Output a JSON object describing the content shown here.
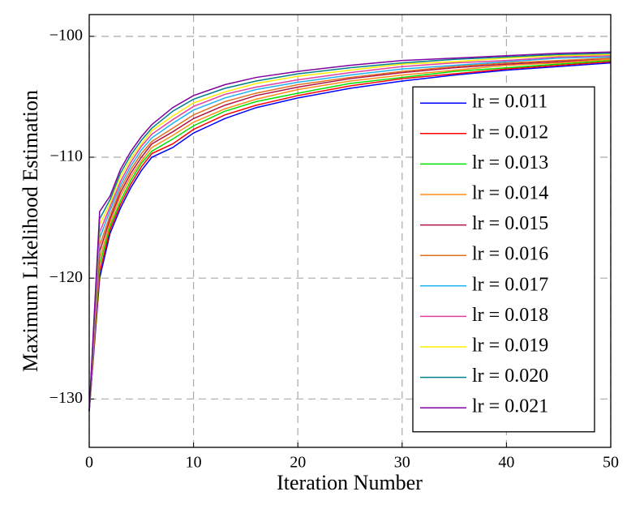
{
  "chart_data": {
    "type": "line",
    "x_label": "Iteration Number",
    "y_label": "Maximum Likelihood Estimation",
    "x": [
      0,
      1,
      2,
      3,
      4,
      5,
      6,
      8,
      10,
      13,
      16,
      20,
      25,
      30,
      35,
      40,
      45,
      50
    ],
    "xlim": [
      0,
      50
    ],
    "xticks": [
      0,
      10,
      20,
      30,
      40,
      50
    ],
    "ylim": [
      -134,
      -98.2
    ],
    "yticks": [
      {
        "value": -130,
        "label": "−130"
      },
      {
        "value": -120,
        "label": "−120"
      },
      {
        "value": -110,
        "label": "−110"
      },
      {
        "value": -100,
        "label": "−100"
      }
    ],
    "grid": true,
    "legend": "right",
    "series": [
      {
        "name": "lr = 0.011",
        "color": "#0000ff",
        "values": [
          -131,
          -120,
          -116.3,
          -114.2,
          -112.5,
          -111.1,
          -110.0,
          -109.2,
          -108.0,
          -106.8,
          -105.9,
          -105.1,
          -104.3,
          -103.7,
          -103.2,
          -102.8,
          -102.5,
          -102.2
        ]
      },
      {
        "name": "lr = 0.012",
        "color": "#ff0000",
        "values": [
          -131,
          -119.5,
          -116.0,
          -113.9,
          -112.2,
          -110.8,
          -109.7,
          -108.9,
          -107.7,
          -106.5,
          -105.7,
          -104.9,
          -104.1,
          -103.5,
          -103.1,
          -102.7,
          -102.4,
          -102.1
        ]
      },
      {
        "name": "lr = 0.013",
        "color": "#00e000",
        "values": [
          -131,
          -118.9,
          -115.7,
          -113.6,
          -111.9,
          -110.5,
          -109.5,
          -108.5,
          -107.4,
          -106.2,
          -105.4,
          -104.7,
          -103.9,
          -103.4,
          -102.9,
          -102.6,
          -102.3,
          -102.0
        ]
      },
      {
        "name": "lr = 0.014",
        "color": "#ff8c1a",
        "values": [
          -131,
          -118.4,
          -115.4,
          -113.2,
          -111.6,
          -110.3,
          -109.2,
          -108.2,
          -107.1,
          -106.0,
          -105.2,
          -104.4,
          -103.7,
          -103.2,
          -102.8,
          -102.4,
          -102.2,
          -101.9
        ]
      },
      {
        "name": "lr = 0.015",
        "color": "#b0124a",
        "values": [
          -131,
          -117.8,
          -115.1,
          -112.9,
          -111.3,
          -110.0,
          -108.9,
          -107.9,
          -106.8,
          -105.7,
          -104.9,
          -104.2,
          -103.5,
          -103.0,
          -102.6,
          -102.3,
          -102.1,
          -101.8
        ]
      },
      {
        "name": "lr = 0.016",
        "color": "#e07020",
        "values": [
          -131,
          -117.3,
          -114.8,
          -112.6,
          -111.0,
          -109.7,
          -108.7,
          -107.6,
          -106.5,
          -105.4,
          -104.7,
          -104.0,
          -103.4,
          -102.9,
          -102.5,
          -102.2,
          -102.0,
          -101.8
        ]
      },
      {
        "name": "lr = 0.017",
        "color": "#20b0f0",
        "values": [
          -131,
          -116.7,
          -114.4,
          -112.3,
          -110.7,
          -109.4,
          -108.4,
          -107.2,
          -106.1,
          -105.1,
          -104.4,
          -103.8,
          -103.2,
          -102.7,
          -102.4,
          -102.1,
          -101.8,
          -101.7
        ]
      },
      {
        "name": "lr = 0.018",
        "color": "#e040a0",
        "values": [
          -131,
          -116.2,
          -114.1,
          -112.0,
          -110.4,
          -109.1,
          -108.1,
          -106.9,
          -105.8,
          -104.8,
          -104.2,
          -103.6,
          -103.0,
          -102.5,
          -102.2,
          -102.0,
          -101.7,
          -101.6
        ]
      },
      {
        "name": "lr = 0.019",
        "color": "#ffee00",
        "values": [
          -131,
          -115.6,
          -113.8,
          -111.6,
          -110.1,
          -108.9,
          -107.8,
          -106.6,
          -105.5,
          -104.6,
          -103.9,
          -103.3,
          -102.8,
          -102.3,
          -102.1,
          -101.8,
          -101.6,
          -101.5
        ]
      },
      {
        "name": "lr = 0.020",
        "color": "#00808a",
        "values": [
          -131,
          -115.1,
          -113.5,
          -111.3,
          -109.8,
          -108.6,
          -107.6,
          -106.2,
          -105.2,
          -104.3,
          -103.7,
          -103.1,
          -102.6,
          -102.2,
          -101.9,
          -101.7,
          -101.5,
          -101.4
        ]
      },
      {
        "name": "lr = 0.021",
        "color": "#8000a0",
        "values": [
          -131,
          -114.5,
          -113.2,
          -111.0,
          -109.5,
          -108.3,
          -107.3,
          -105.9,
          -104.9,
          -104.0,
          -103.4,
          -102.9,
          -102.4,
          -102.0,
          -101.8,
          -101.6,
          -101.4,
          -101.3
        ]
      }
    ]
  }
}
